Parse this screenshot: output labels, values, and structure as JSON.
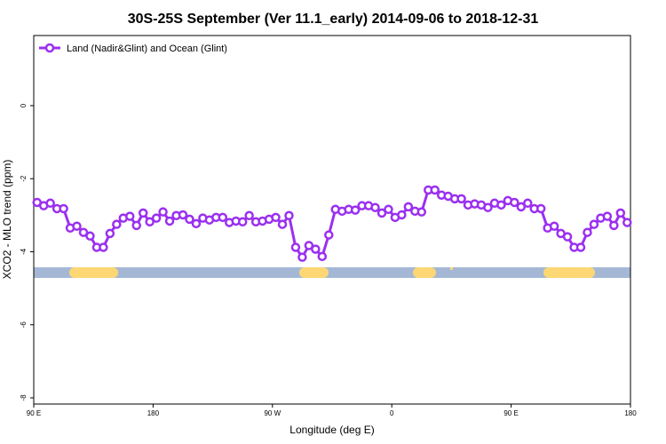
{
  "chart_data": {
    "type": "line",
    "title": "30S-25S September (Ver 11.1_early)   2014-09-06 to 2018-12-31",
    "x_label": "Longitude (deg E)",
    "y_label": "XCO2 - MLO trend (ppm)",
    "x": [
      92.5,
      97.5,
      102.5,
      107.5,
      112.5,
      117.5,
      122.5,
      127.5,
      132.5,
      137.5,
      142.5,
      147.5,
      152.5,
      157.5,
      162.5,
      167.5,
      172.5,
      177.5,
      182.5,
      187.5,
      192.5,
      197.5,
      202.5,
      207.5,
      212.5,
      217.5,
      222.5,
      227.5,
      232.5,
      237.5,
      242.5,
      247.5,
      252.5,
      257.5,
      262.5,
      267.5,
      272.5,
      277.5,
      282.5,
      287.5,
      292.5,
      297.5,
      302.5,
      307.5,
      312.5,
      317.5,
      322.5,
      327.5,
      332.5,
      337.5,
      342.5,
      347.5,
      352.5,
      357.5,
      362.5,
      367.5,
      372.5,
      377.5,
      382.5,
      387.5,
      392.5,
      397.5,
      402.5,
      407.5,
      412.5,
      417.5,
      422.5,
      427.5,
      432.5,
      437.5,
      442.5,
      447.5,
      452.5,
      457.5,
      462.5,
      467.5,
      472.5,
      477.5,
      482.5,
      487.5,
      492.5,
      497.5,
      502.5,
      507.5,
      512.5,
      517.5,
      522.5,
      527.5,
      532.5,
      537.5
    ],
    "series": [
      {
        "name": "Land (Nadir&Glint) and Ocean (Glint)",
        "color": "#9b30f0",
        "values": [
          -2.65,
          -2.74,
          -2.67,
          -2.82,
          -2.82,
          -3.35,
          -3.3,
          -3.47,
          -3.57,
          -3.88,
          -3.88,
          -3.5,
          -3.25,
          -3.08,
          -3.03,
          -3.28,
          -2.94,
          -3.18,
          -3.08,
          -2.91,
          -3.16,
          -3.01,
          -2.99,
          -3.11,
          -3.23,
          -3.08,
          -3.13,
          -3.06,
          -3.06,
          -3.2,
          -3.16,
          -3.18,
          -3.01,
          -3.18,
          -3.16,
          -3.11,
          -3.06,
          -3.25,
          -3.01,
          -3.88,
          -4.15,
          -3.83,
          -3.93,
          -4.13,
          -3.54,
          -2.84,
          -2.89,
          -2.84,
          -2.86,
          -2.74,
          -2.74,
          -2.79,
          -2.94,
          -2.84,
          -3.06,
          -2.99,
          -2.77,
          -2.89,
          -2.91,
          -2.31,
          -2.31,
          -2.45,
          -2.48,
          -2.55,
          -2.55,
          -2.72,
          -2.69,
          -2.72,
          -2.79,
          -2.67,
          -2.72,
          -2.6,
          -2.65,
          -2.77,
          -2.67,
          -2.82,
          -2.82,
          -3.35,
          -3.3,
          -3.5,
          -3.59,
          -3.88,
          -3.88,
          -3.47,
          -3.25,
          -3.08,
          -3.03,
          -3.28,
          -2.94,
          -3.2
        ]
      }
    ],
    "xlim": [
      90,
      540
    ],
    "xticks": [
      {
        "value": 90,
        "label": "90 E"
      },
      180,
      {
        "value": 270,
        "label": "90 W"
      },
      {
        "value": 360,
        "label": "0"
      },
      {
        "value": 450,
        "label": "90 E"
      },
      {
        "value": 540,
        "label": "180"
      }
    ],
    "ylim": [
      -8.17,
      1.92
    ],
    "yticks": [
      0,
      -2,
      -4,
      -6,
      -8
    ],
    "legend": "top-left"
  }
}
